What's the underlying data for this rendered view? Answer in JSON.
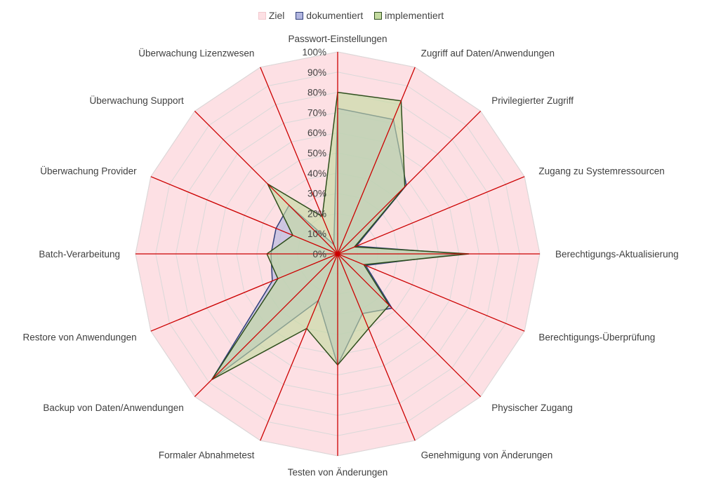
{
  "chart_data": {
    "type": "radar",
    "categories": [
      "Passwort-Einstellungen",
      "Zugriff auf Daten/Anwendungen",
      "Privilegierter Zugriff",
      "Zugang zu Systemressourcen",
      "Berechtigungs-Aktualisierung",
      "Berechtigungs-Überprüfung",
      "Physischer Zugang",
      "Genehmigung von Änderungen",
      "Testen von Änderungen",
      "Formaler Abnahmetest",
      "Backup von Daten/Anwendungen",
      "Restore von Anwendungen",
      "Batch-Verarbeitung",
      "Überwachung Provider",
      "Überwachung Support",
      "Überwachung Lizenzwesen"
    ],
    "series": [
      {
        "name": "Ziel",
        "values": [
          100,
          100,
          100,
          100,
          100,
          100,
          100,
          100,
          100,
          100,
          100,
          100,
          100,
          100,
          100,
          100
        ],
        "fill": "#fde0e4",
        "stroke": "#f2c9cf"
      },
      {
        "name": "dokumentiert",
        "values": [
          72,
          72,
          48,
          10,
          60,
          15,
          38,
          32,
          55,
          25,
          88,
          35,
          33,
          33,
          34,
          5
        ],
        "fill": "#b2b6e0",
        "stroke": "#2f3f7a"
      },
      {
        "name": "implementiert",
        "values": [
          80,
          82,
          47,
          9,
          65,
          14,
          36,
          40,
          55,
          40,
          88,
          32,
          35,
          24,
          49,
          20
        ],
        "fill": "#c4dba0",
        "stroke": "#2e4e1c"
      }
    ],
    "ticks": [
      "0%",
      "10%",
      "20%",
      "30%",
      "40%",
      "50%",
      "60%",
      "70%",
      "80%",
      "90%",
      "100%"
    ],
    "rlim": [
      0,
      100
    ],
    "grid": true,
    "legend_position": "top"
  },
  "colors": {
    "spoke": "#cc0000",
    "grid": "#d9d9d9",
    "target_fill": "#fde0e4"
  }
}
